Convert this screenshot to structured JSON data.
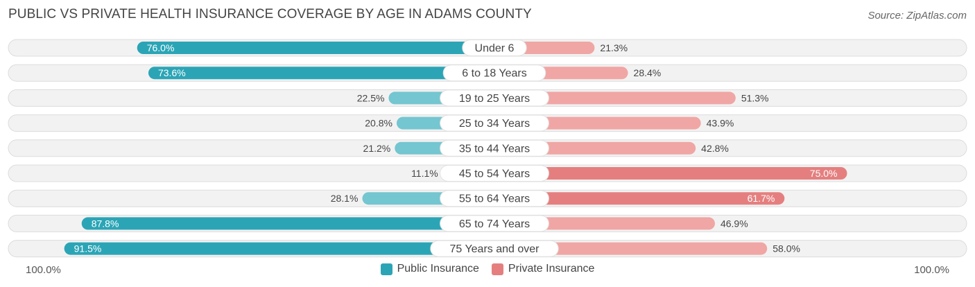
{
  "title": "PUBLIC VS PRIVATE HEALTH INSURANCE COVERAGE BY AGE IN ADAMS COUNTY",
  "source": "Source: ZipAtlas.com",
  "colors": {
    "public_strong": "#2ba5b6",
    "public_light": "#74c6d0",
    "private_strong": "#e57f7f",
    "private_light": "#f0a6a4",
    "row_bg": "#f2f2f2",
    "row_border": "#dcdcdc"
  },
  "axis": {
    "left_label": "100.0%",
    "right_label": "100.0%"
  },
  "legend": {
    "public": "Public Insurance",
    "private": "Private Insurance"
  },
  "chart_data": {
    "type": "bar",
    "orientation": "horizontal-diverging",
    "xlim": [
      -100,
      100
    ],
    "categories": [
      "Under 6",
      "6 to 18 Years",
      "19 to 25 Years",
      "25 to 34 Years",
      "35 to 44 Years",
      "45 to 54 Years",
      "55 to 64 Years",
      "65 to 74 Years",
      "75 Years and over"
    ],
    "series": [
      {
        "name": "Public Insurance",
        "values": [
          76.0,
          73.6,
          22.5,
          20.8,
          21.2,
          11.1,
          28.1,
          87.8,
          91.5
        ],
        "labels": [
          "76.0%",
          "73.6%",
          "22.5%",
          "20.8%",
          "21.2%",
          "11.1%",
          "28.1%",
          "87.8%",
          "91.5%"
        ]
      },
      {
        "name": "Private Insurance",
        "values": [
          21.3,
          28.4,
          51.3,
          43.9,
          42.8,
          75.0,
          61.7,
          46.9,
          58.0
        ],
        "labels": [
          "21.3%",
          "28.4%",
          "51.3%",
          "43.9%",
          "42.8%",
          "75.0%",
          "61.7%",
          "46.9%",
          "58.0%"
        ]
      }
    ]
  }
}
